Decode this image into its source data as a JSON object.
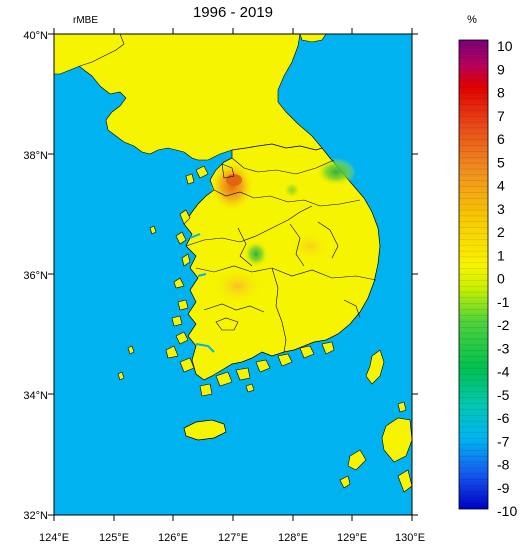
{
  "map": {
    "title": "1996 - 2019",
    "variable_label": "rMBE",
    "unit_label": "%",
    "lat_labels": [
      "40°N",
      "38°N",
      "36°N",
      "34°N",
      "32°N"
    ],
    "lon_labels": [
      "124°E",
      "125°E",
      "126°E",
      "127°E",
      "128°E",
      "129°E",
      "130°E"
    ],
    "colorbar": {
      "min": -10,
      "max": 10,
      "tick_labels": [
        "10",
        "9",
        "8",
        "7",
        "6",
        "5",
        "4",
        "3",
        "2",
        "1",
        "0",
        "-1",
        "-2",
        "-3",
        "-4",
        "-5",
        "-6",
        "-7",
        "-8",
        "-9",
        "-10"
      ]
    },
    "colors": {
      "ocean": "#00b3f0",
      "land_neutral": "#f6f400",
      "border": "#000000"
    }
  }
}
